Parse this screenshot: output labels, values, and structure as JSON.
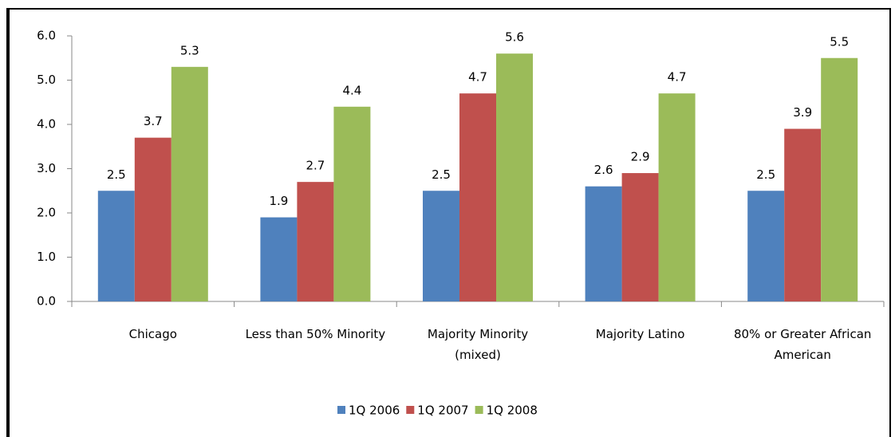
{
  "chart_data": {
    "type": "bar",
    "categories": [
      "Chicago",
      "Less than 50% Minority",
      "Majority Minority (mixed)",
      "Majority Latino",
      "80% or Greater African American"
    ],
    "series": [
      {
        "name": "1Q 2006",
        "color": "#4f81bd",
        "values": [
          2.5,
          1.9,
          2.5,
          2.6,
          2.5
        ]
      },
      {
        "name": "1Q 2007",
        "color": "#c0504d",
        "values": [
          3.7,
          2.7,
          4.7,
          2.9,
          3.9
        ]
      },
      {
        "name": "1Q 2008",
        "color": "#9bbb59",
        "values": [
          5.3,
          4.4,
          5.6,
          4.7,
          5.5
        ]
      }
    ],
    "ylim": [
      0,
      6
    ],
    "yticks": [
      {
        "value": 0,
        "label": "0.0"
      },
      {
        "value": 1,
        "label": "1.0"
      },
      {
        "value": 2,
        "label": "2.0"
      },
      {
        "value": 3,
        "label": "3.0"
      },
      {
        "value": 4,
        "label": "4.0"
      },
      {
        "value": 5,
        "label": "5.0"
      },
      {
        "value": 6,
        "label": "6.0"
      }
    ],
    "legend": "bottom"
  }
}
